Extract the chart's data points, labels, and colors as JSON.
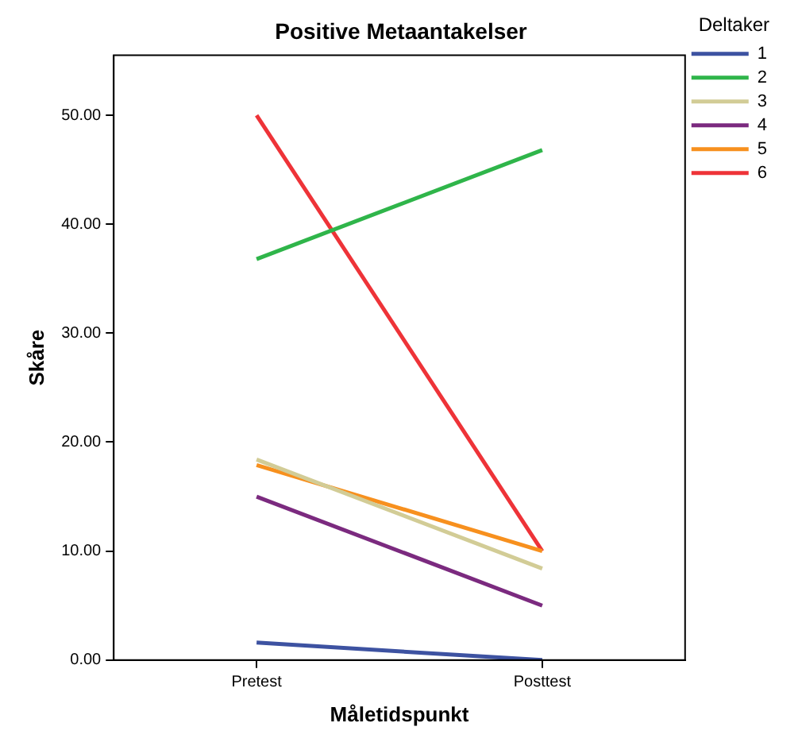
{
  "chart_data": {
    "type": "line",
    "title": "Positive Metaantakelser",
    "xlabel": "Måletidspunkt",
    "ylabel": "Skåre",
    "legend_title": "Deltaker",
    "legend": "right",
    "categories": [
      "Pretest",
      "Posttest"
    ],
    "series": [
      {
        "name": "1",
        "color": "#3d52a1",
        "values": [
          1.6,
          0
        ]
      },
      {
        "name": "2",
        "color": "#2fb54a",
        "values": [
          36.8,
          46.8
        ]
      },
      {
        "name": "3",
        "color": "#d2cc96",
        "values": [
          18.4,
          8.4
        ]
      },
      {
        "name": "4",
        "color": "#7b2a7f",
        "values": [
          15.0,
          5.0
        ]
      },
      {
        "name": "5",
        "color": "#f7901e",
        "values": [
          17.9,
          10.0
        ]
      },
      {
        "name": "6",
        "color": "#ee3338",
        "values": [
          50.0,
          10.0
        ]
      }
    ],
    "ylim": [
      0,
      55.5
    ],
    "yticks": [
      {
        "value": 0,
        "label": "0.00"
      },
      {
        "value": 10,
        "label": "10.00"
      },
      {
        "value": 20,
        "label": "20.00"
      },
      {
        "value": 30,
        "label": "30.00"
      },
      {
        "value": 40,
        "label": "40.00"
      },
      {
        "value": 50,
        "label": "50.00"
      }
    ],
    "grid": false,
    "marker": "none",
    "line_style": "solid"
  }
}
